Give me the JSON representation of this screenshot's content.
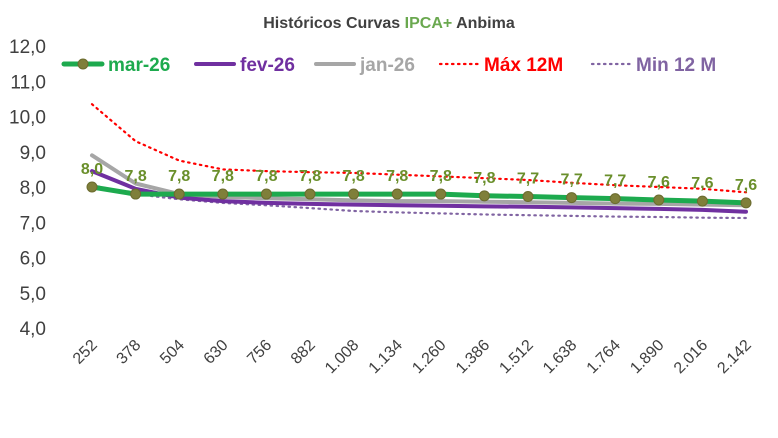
{
  "chart_data": {
    "type": "line",
    "title_parts": [
      "Históricos Curvas ",
      "IPCA+",
      " Anbima"
    ],
    "title_colors": [
      "#404040",
      "#6aa84f",
      "#404040"
    ],
    "x": [
      "252",
      "378",
      "504",
      "630",
      "756",
      "882",
      "1.008",
      "1.134",
      "1.260",
      "1.386",
      "1.512",
      "1.638",
      "1.764",
      "1.890",
      "2.016",
      "2.142"
    ],
    "ylim": [
      4.0,
      12.0
    ],
    "yticks": [
      "4,0",
      "5,0",
      "6,0",
      "7,0",
      "8,0",
      "9,0",
      "10,0",
      "11,0",
      "12,0"
    ],
    "grid": false,
    "legend_position": "top",
    "series": [
      {
        "name": "mar-26",
        "color": "#1daa4e",
        "dash": "solid",
        "marker": true,
        "values": [
          8.0,
          7.8,
          7.8,
          7.8,
          7.8,
          7.8,
          7.8,
          7.8,
          7.8,
          7.75,
          7.73,
          7.7,
          7.67,
          7.63,
          7.6,
          7.55
        ],
        "labels": [
          "8,0",
          "7,8",
          "7,8",
          "7,8",
          "7,8",
          "7,8",
          "7,8",
          "7,8",
          "7,8",
          "7,8",
          "7,7",
          "7,7",
          "7,7",
          "7,6",
          "7,6",
          "7,6"
        ]
      },
      {
        "name": "fev-26",
        "color": "#7030a0",
        "dash": "solid",
        "values": [
          8.45,
          7.95,
          7.7,
          7.6,
          7.55,
          7.52,
          7.5,
          7.48,
          7.47,
          7.45,
          7.44,
          7.42,
          7.4,
          7.38,
          7.35,
          7.3
        ]
      },
      {
        "name": "jan-26",
        "color": "#a6a6a6",
        "dash": "solid",
        "values": [
          8.9,
          8.1,
          7.8,
          7.72,
          7.68,
          7.65,
          7.62,
          7.6,
          7.6,
          7.58,
          7.57,
          7.55,
          7.53,
          7.52,
          7.5,
          7.48
        ]
      },
      {
        "name": "Máx 12M",
        "color": "#ff0000",
        "dash": "dotted",
        "values": [
          10.35,
          9.3,
          8.75,
          8.5,
          8.45,
          8.42,
          8.4,
          8.35,
          8.3,
          8.25,
          8.2,
          8.12,
          8.05,
          8.0,
          7.95,
          7.85
        ]
      },
      {
        "name": "Min 12 M",
        "color": "#8064a2",
        "dash": "dotted",
        "values": [
          8.05,
          7.8,
          7.65,
          7.55,
          7.48,
          7.4,
          7.32,
          7.28,
          7.25,
          7.22,
          7.2,
          7.18,
          7.16,
          7.15,
          7.13,
          7.12
        ]
      }
    ]
  }
}
